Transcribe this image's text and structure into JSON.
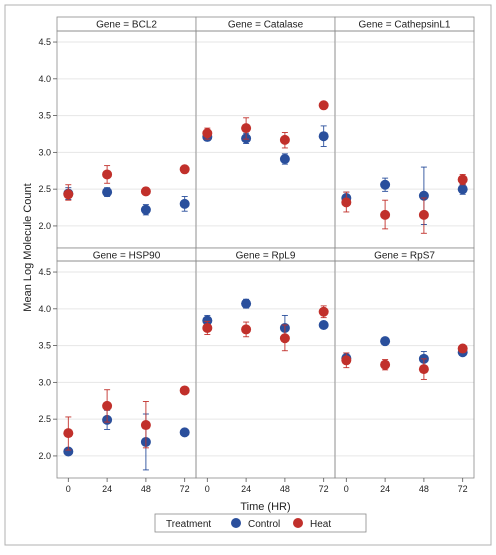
{
  "chart_data": {
    "type": "scatter",
    "title": "",
    "xlabel": "Time (HR)",
    "ylabel": "Mean Log Molecule Count",
    "x_ticks": [
      0,
      24,
      48,
      72
    ],
    "y_ticks": [
      2.0,
      2.5,
      3.0,
      3.5,
      4.0,
      4.5
    ],
    "y_tick_labels": [
      "2.0",
      "2.5",
      "3.0",
      "3.5",
      "4.0",
      "4.5"
    ],
    "x_tick_labels": [
      "0",
      "24",
      "48",
      "72"
    ],
    "xlim": [
      -7,
      79
    ],
    "ylim": [
      1.7,
      4.65
    ],
    "grid": true,
    "legend": {
      "title": "Treatment",
      "position": "bottom",
      "entries": [
        {
          "name": "Control",
          "color": "#2a4f9c"
        },
        {
          "name": "Heat",
          "color": "#c1302b"
        }
      ]
    },
    "colors": {
      "Control": "#2a4f9c",
      "Heat": "#c1302b"
    },
    "panels": [
      {
        "title": "Gene = BCL2",
        "series": [
          {
            "name": "Control",
            "points": [
              {
                "x": 0,
                "y": 2.44,
                "lo": 2.36,
                "hi": 2.52
              },
              {
                "x": 24,
                "y": 2.46,
                "lo": 2.4,
                "hi": 2.52
              },
              {
                "x": 48,
                "y": 2.22,
                "lo": 2.15,
                "hi": 2.29
              },
              {
                "x": 72,
                "y": 2.3,
                "lo": 2.2,
                "hi": 2.4
              }
            ]
          },
          {
            "name": "Heat",
            "points": [
              {
                "x": 0,
                "y": 2.43,
                "lo": 2.35,
                "hi": 2.56
              },
              {
                "x": 24,
                "y": 2.7,
                "lo": 2.58,
                "hi": 2.82
              },
              {
                "x": 48,
                "y": 2.47,
                "lo": 2.42,
                "hi": 2.52
              },
              {
                "x": 72,
                "y": 2.77,
                "lo": 2.74,
                "hi": 2.8
              }
            ]
          }
        ]
      },
      {
        "title": "Gene = Catalase",
        "series": [
          {
            "name": "Control",
            "points": [
              {
                "x": 0,
                "y": 3.21,
                "lo": 3.16,
                "hi": 3.26
              },
              {
                "x": 24,
                "y": 3.19,
                "lo": 3.12,
                "hi": 3.26
              },
              {
                "x": 48,
                "y": 2.91,
                "lo": 2.84,
                "hi": 2.98
              },
              {
                "x": 72,
                "y": 3.22,
                "lo": 3.08,
                "hi": 3.36
              }
            ]
          },
          {
            "name": "Heat",
            "points": [
              {
                "x": 0,
                "y": 3.26,
                "lo": 3.18,
                "hi": 3.33
              },
              {
                "x": 24,
                "y": 3.33,
                "lo": 3.18,
                "hi": 3.47
              },
              {
                "x": 48,
                "y": 3.17,
                "lo": 3.06,
                "hi": 3.27
              },
              {
                "x": 72,
                "y": 3.64,
                "lo": 3.61,
                "hi": 3.67
              }
            ]
          }
        ]
      },
      {
        "title": "Gene = CathepsinL1",
        "series": [
          {
            "name": "Control",
            "points": [
              {
                "x": 0,
                "y": 2.38,
                "lo": 2.3,
                "hi": 2.46
              },
              {
                "x": 24,
                "y": 2.56,
                "lo": 2.47,
                "hi": 2.65
              },
              {
                "x": 48,
                "y": 2.41,
                "lo": 2.02,
                "hi": 2.8
              },
              {
                "x": 72,
                "y": 2.5,
                "lo": 2.43,
                "hi": 2.57
              }
            ]
          },
          {
            "name": "Heat",
            "points": [
              {
                "x": 0,
                "y": 2.32,
                "lo": 2.19,
                "hi": 2.46
              },
              {
                "x": 24,
                "y": 2.15,
                "lo": 1.96,
                "hi": 2.35
              },
              {
                "x": 48,
                "y": 2.15,
                "lo": 1.9,
                "hi": 2.38
              },
              {
                "x": 72,
                "y": 2.63,
                "lo": 2.56,
                "hi": 2.7
              }
            ]
          }
        ]
      },
      {
        "title": "Gene = HSP90",
        "series": [
          {
            "name": "Control",
            "points": [
              {
                "x": 0,
                "y": 2.06,
                "lo": 2.03,
                "hi": 2.09
              },
              {
                "x": 24,
                "y": 2.49,
                "lo": 2.36,
                "hi": 2.62
              },
              {
                "x": 48,
                "y": 2.19,
                "lo": 1.81,
                "hi": 2.57
              },
              {
                "x": 72,
                "y": 2.32,
                "lo": 2.29,
                "hi": 2.35
              }
            ]
          },
          {
            "name": "Heat",
            "points": [
              {
                "x": 0,
                "y": 2.31,
                "lo": 2.08,
                "hi": 2.53
              },
              {
                "x": 24,
                "y": 2.68,
                "lo": 2.46,
                "hi": 2.9
              },
              {
                "x": 48,
                "y": 2.42,
                "lo": 2.11,
                "hi": 2.74
              },
              {
                "x": 72,
                "y": 2.89,
                "lo": 2.86,
                "hi": 2.92
              }
            ]
          }
        ]
      },
      {
        "title": "Gene = RpL9",
        "series": [
          {
            "name": "Control",
            "points": [
              {
                "x": 0,
                "y": 3.84,
                "lo": 3.77,
                "hi": 3.91
              },
              {
                "x": 24,
                "y": 4.07,
                "lo": 4.01,
                "hi": 4.13
              },
              {
                "x": 48,
                "y": 3.74,
                "lo": 3.57,
                "hi": 3.91
              },
              {
                "x": 72,
                "y": 3.78,
                "lo": 3.74,
                "hi": 3.82
              }
            ]
          },
          {
            "name": "Heat",
            "points": [
              {
                "x": 0,
                "y": 3.74,
                "lo": 3.65,
                "hi": 3.83
              },
              {
                "x": 24,
                "y": 3.72,
                "lo": 3.62,
                "hi": 3.82
              },
              {
                "x": 48,
                "y": 3.6,
                "lo": 3.43,
                "hi": 3.78
              },
              {
                "x": 72,
                "y": 3.96,
                "lo": 3.88,
                "hi": 4.04
              }
            ]
          }
        ]
      },
      {
        "title": "Gene = RpS7",
        "series": [
          {
            "name": "Control",
            "points": [
              {
                "x": 0,
                "y": 3.33,
                "lo": 3.26,
                "hi": 3.4
              },
              {
                "x": 24,
                "y": 3.56,
                "lo": 3.52,
                "hi": 3.6
              },
              {
                "x": 48,
                "y": 3.32,
                "lo": 3.22,
                "hi": 3.42
              },
              {
                "x": 72,
                "y": 3.41,
                "lo": 3.38,
                "hi": 3.44
              }
            ]
          },
          {
            "name": "Heat",
            "points": [
              {
                "x": 0,
                "y": 3.3,
                "lo": 3.2,
                "hi": 3.4
              },
              {
                "x": 24,
                "y": 3.24,
                "lo": 3.17,
                "hi": 3.31
              },
              {
                "x": 48,
                "y": 3.18,
                "lo": 3.04,
                "hi": 3.32
              },
              {
                "x": 72,
                "y": 3.46,
                "lo": 3.43,
                "hi": 3.49
              }
            ]
          }
        ]
      }
    ]
  }
}
